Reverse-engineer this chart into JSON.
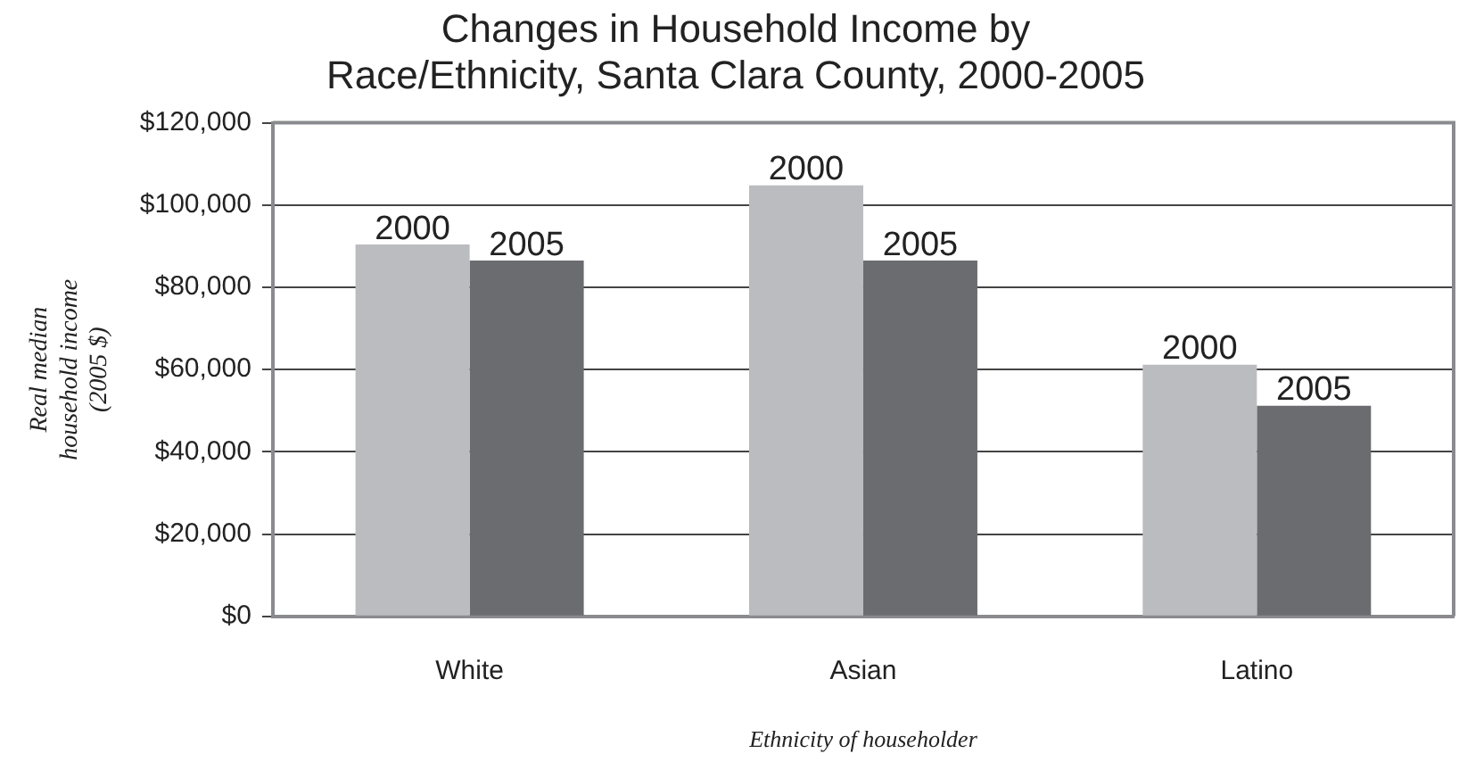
{
  "chart_data": {
    "type": "bar",
    "title": "Changes in Household Income by Race/Ethnicity, Santa Clara County, 2000-2005",
    "xlabel": "Ethnicity of householder",
    "ylabel": "Real median household income (2005 $)",
    "categories": [
      "White",
      "Asian",
      "Latino"
    ],
    "series": [
      {
        "name": "2000",
        "color": "#bbbcc0",
        "values": [
          90400,
          104800,
          61200
        ]
      },
      {
        "name": "2005",
        "color": "#6b6c70",
        "values": [
          86500,
          86500,
          51200
        ]
      }
    ],
    "ylim": [
      0,
      120000
    ],
    "yticks": [
      {
        "value": 0,
        "label": "$0"
      },
      {
        "value": 20000,
        "label": "$20,000"
      },
      {
        "value": 40000,
        "label": "$40,000"
      },
      {
        "value": 60000,
        "label": "$60,000"
      },
      {
        "value": 80000,
        "label": "$80,000"
      },
      {
        "value": 100000,
        "label": "$100,000"
      },
      {
        "value": 120000,
        "label": "$120,000"
      }
    ],
    "grid": "y",
    "legend": false
  }
}
